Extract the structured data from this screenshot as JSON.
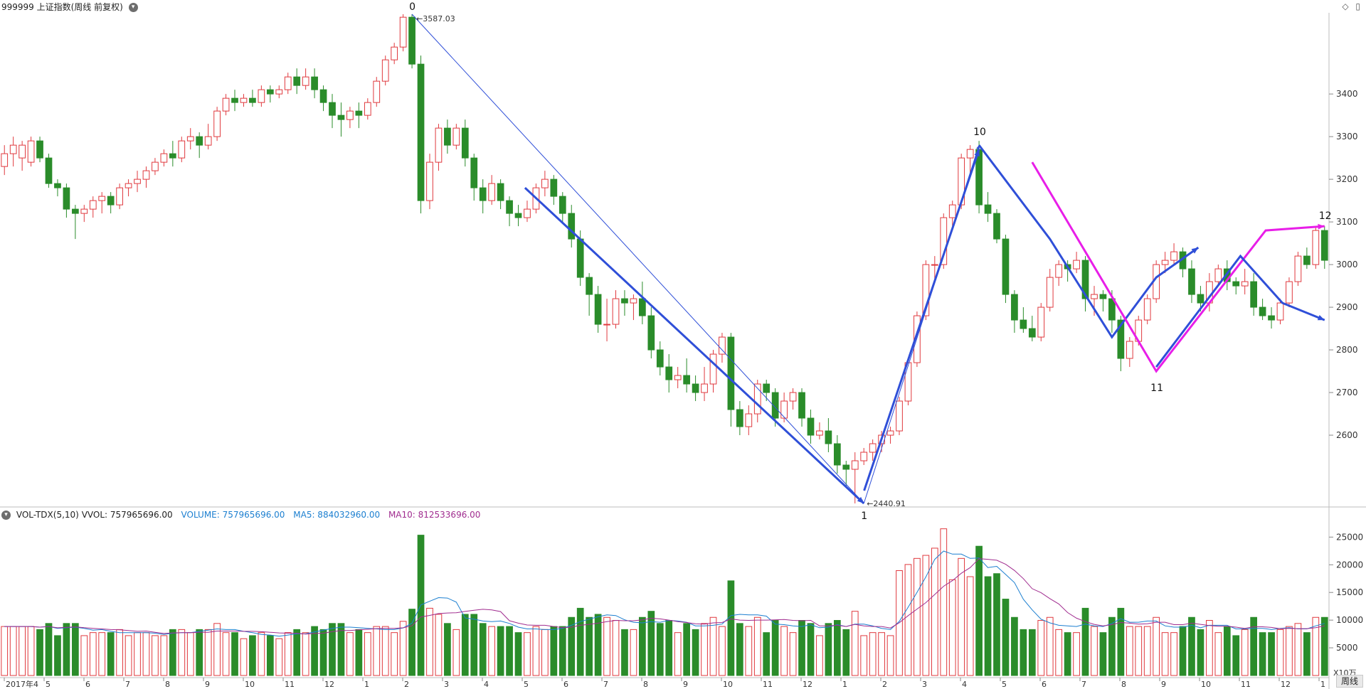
{
  "header": {
    "title": "999999 上证指数(周线 前复权)",
    "collapse_icon": "chevron-down-icon",
    "right_icons": [
      "diamond-icon",
      "panel-toggle-icon"
    ]
  },
  "colors": {
    "up": "#e0393e",
    "down": "#2a8c2a",
    "wave_blue": "#2f4fd8",
    "wave_magenta": "#e81ee8",
    "ma5": "#1c7fd0",
    "ma10": "#a02c8f",
    "grid": "#d8d8d8"
  },
  "chart_data": [
    {
      "type": "candlestick",
      "title": "999999 上证指数(周线 前复权)",
      "y_ticks": [
        2600,
        2700,
        2800,
        2900,
        3000,
        3100,
        3200,
        3300,
        3400
      ],
      "ylim": [
        2440,
        3587
      ],
      "x_month_labels": [
        "2017年4",
        "5",
        "6",
        "7",
        "8",
        "9",
        "10",
        "11",
        "12",
        "1",
        "2",
        "3",
        "4",
        "5",
        "6",
        "7",
        "8",
        "9",
        "10",
        "11",
        "12",
        "1",
        "2",
        "3",
        "4",
        "5",
        "6",
        "7",
        "8",
        "9",
        "10",
        "11",
        "12",
        "1"
      ],
      "peak_annotation": "3587.03",
      "trough_annotation": "2440.91",
      "wave_labels": [
        "0",
        "1",
        "10",
        "11",
        "12"
      ],
      "candles": [
        [
          3230,
          3260,
          3210,
          3280
        ],
        [
          3260,
          3280,
          3230,
          3300
        ],
        [
          3250,
          3280,
          3220,
          3290
        ],
        [
          3240,
          3290,
          3230,
          3300
        ],
        [
          3290,
          3250,
          3240,
          3300
        ],
        [
          3250,
          3190,
          3180,
          3260
        ],
        [
          3190,
          3180,
          3160,
          3200
        ],
        [
          3180,
          3130,
          3110,
          3190
        ],
        [
          3130,
          3120,
          3060,
          3140
        ],
        [
          3120,
          3130,
          3100,
          3140
        ],
        [
          3130,
          3150,
          3110,
          3160
        ],
        [
          3150,
          3160,
          3120,
          3170
        ],
        [
          3160,
          3140,
          3120,
          3170
        ],
        [
          3140,
          3180,
          3130,
          3190
        ],
        [
          3180,
          3190,
          3160,
          3200
        ],
        [
          3190,
          3200,
          3170,
          3220
        ],
        [
          3200,
          3220,
          3180,
          3230
        ],
        [
          3220,
          3240,
          3210,
          3250
        ],
        [
          3240,
          3260,
          3230,
          3270
        ],
        [
          3260,
          3250,
          3230,
          3290
        ],
        [
          3250,
          3290,
          3240,
          3300
        ],
        [
          3290,
          3300,
          3270,
          3320
        ],
        [
          3300,
          3280,
          3250,
          3310
        ],
        [
          3280,
          3300,
          3270,
          3330
        ],
        [
          3300,
          3360,
          3290,
          3370
        ],
        [
          3360,
          3390,
          3350,
          3400
        ],
        [
          3390,
          3380,
          3360,
          3410
        ],
        [
          3380,
          3390,
          3370,
          3400
        ],
        [
          3390,
          3380,
          3370,
          3410
        ],
        [
          3380,
          3410,
          3370,
          3420
        ],
        [
          3410,
          3400,
          3380,
          3420
        ],
        [
          3400,
          3410,
          3390,
          3420
        ],
        [
          3410,
          3440,
          3400,
          3450
        ],
        [
          3440,
          3420,
          3400,
          3460
        ],
        [
          3420,
          3440,
          3410,
          3460
        ],
        [
          3440,
          3410,
          3390,
          3460
        ],
        [
          3410,
          3380,
          3360,
          3420
        ],
        [
          3380,
          3350,
          3320,
          3400
        ],
        [
          3350,
          3340,
          3300,
          3380
        ],
        [
          3340,
          3360,
          3320,
          3370
        ],
        [
          3360,
          3350,
          3320,
          3380
        ],
        [
          3350,
          3380,
          3340,
          3390
        ],
        [
          3380,
          3430,
          3370,
          3440
        ],
        [
          3430,
          3480,
          3420,
          3490
        ],
        [
          3480,
          3510,
          3470,
          3520
        ],
        [
          3510,
          3580,
          3500,
          3587
        ],
        [
          3580,
          3470,
          3460,
          3587
        ],
        [
          3470,
          3150,
          3120,
          3490
        ],
        [
          3150,
          3240,
          3130,
          3260
        ],
        [
          3240,
          3320,
          3220,
          3330
        ],
        [
          3320,
          3280,
          3260,
          3340
        ],
        [
          3280,
          3320,
          3270,
          3330
        ],
        [
          3320,
          3250,
          3230,
          3340
        ],
        [
          3250,
          3180,
          3150,
          3260
        ],
        [
          3180,
          3150,
          3120,
          3200
        ],
        [
          3150,
          3190,
          3140,
          3210
        ],
        [
          3190,
          3150,
          3130,
          3200
        ],
        [
          3150,
          3120,
          3090,
          3160
        ],
        [
          3120,
          3110,
          3090,
          3140
        ],
        [
          3110,
          3130,
          3100,
          3150
        ],
        [
          3130,
          3180,
          3120,
          3190
        ],
        [
          3180,
          3200,
          3160,
          3220
        ],
        [
          3200,
          3160,
          3140,
          3210
        ],
        [
          3160,
          3120,
          3100,
          3170
        ],
        [
          3120,
          3060,
          3040,
          3140
        ],
        [
          3060,
          2970,
          2950,
          3080
        ],
        [
          2970,
          2930,
          2880,
          2980
        ],
        [
          2930,
          2860,
          2840,
          2950
        ],
        [
          2860,
          2860,
          2820,
          2920
        ],
        [
          2860,
          2920,
          2850,
          2940
        ],
        [
          2920,
          2910,
          2880,
          2940
        ],
        [
          2910,
          2920,
          2870,
          2930
        ],
        [
          2920,
          2880,
          2860,
          2960
        ],
        [
          2880,
          2800,
          2780,
          2900
        ],
        [
          2800,
          2760,
          2740,
          2820
        ],
        [
          2760,
          2730,
          2700,
          2790
        ],
        [
          2730,
          2740,
          2710,
          2760
        ],
        [
          2740,
          2720,
          2700,
          2780
        ],
        [
          2720,
          2700,
          2680,
          2740
        ],
        [
          2700,
          2720,
          2680,
          2760
        ],
        [
          2720,
          2790,
          2700,
          2800
        ],
        [
          2790,
          2830,
          2770,
          2840
        ],
        [
          2830,
          2660,
          2620,
          2840
        ],
        [
          2660,
          2620,
          2600,
          2680
        ],
        [
          2620,
          2650,
          2600,
          2670
        ],
        [
          2650,
          2720,
          2630,
          2730
        ],
        [
          2720,
          2700,
          2680,
          2730
        ],
        [
          2700,
          2640,
          2620,
          2710
        ],
        [
          2640,
          2680,
          2630,
          2700
        ],
        [
          2680,
          2700,
          2660,
          2710
        ],
        [
          2700,
          2640,
          2620,
          2710
        ],
        [
          2640,
          2600,
          2580,
          2660
        ],
        [
          2600,
          2610,
          2590,
          2630
        ],
        [
          2610,
          2580,
          2560,
          2640
        ],
        [
          2580,
          2530,
          2510,
          2600
        ],
        [
          2530,
          2520,
          2480,
          2540
        ],
        [
          2520,
          2540,
          2440,
          2560
        ],
        [
          2540,
          2560,
          2530,
          2570
        ],
        [
          2560,
          2580,
          2540,
          2590
        ],
        [
          2580,
          2600,
          2560,
          2610
        ],
        [
          2600,
          2610,
          2580,
          2620
        ],
        [
          2610,
          2680,
          2600,
          2690
        ],
        [
          2680,
          2770,
          2670,
          2780
        ],
        [
          2770,
          2880,
          2760,
          2890
        ],
        [
          2880,
          3000,
          2870,
          3010
        ],
        [
          3000,
          3000,
          2960,
          3020
        ],
        [
          3000,
          3110,
          2990,
          3120
        ],
        [
          3110,
          3140,
          3090,
          3150
        ],
        [
          3140,
          3250,
          3130,
          3260
        ],
        [
          3250,
          3270,
          3210,
          3280
        ],
        [
          3270,
          3140,
          3120,
          3290
        ],
        [
          3140,
          3120,
          3100,
          3170
        ],
        [
          3120,
          3060,
          3050,
          3130
        ],
        [
          3060,
          2930,
          2910,
          3070
        ],
        [
          2930,
          2870,
          2840,
          2940
        ],
        [
          2870,
          2850,
          2840,
          2900
        ],
        [
          2850,
          2830,
          2820,
          2880
        ],
        [
          2830,
          2900,
          2820,
          2910
        ],
        [
          2900,
          2970,
          2890,
          2990
        ],
        [
          2970,
          3000,
          2950,
          3010
        ],
        [
          3000,
          2990,
          2960,
          3010
        ],
        [
          2990,
          3010,
          2980,
          3030
        ],
        [
          3010,
          2920,
          2890,
          3020
        ],
        [
          2920,
          2930,
          2880,
          2950
        ],
        [
          2930,
          2920,
          2890,
          2940
        ],
        [
          2920,
          2870,
          2840,
          2940
        ],
        [
          2870,
          2780,
          2750,
          2880
        ],
        [
          2780,
          2820,
          2760,
          2830
        ],
        [
          2820,
          2870,
          2810,
          2880
        ],
        [
          2870,
          2920,
          2860,
          2930
        ],
        [
          2920,
          3000,
          2910,
          3010
        ],
        [
          3000,
          3010,
          2980,
          3030
        ],
        [
          3010,
          3030,
          3000,
          3050
        ],
        [
          3030,
          2990,
          2970,
          3040
        ],
        [
          2990,
          2930,
          2910,
          3010
        ],
        [
          2930,
          2910,
          2890,
          2950
        ],
        [
          2910,
          2960,
          2890,
          2980
        ],
        [
          2960,
          2990,
          2950,
          3000
        ],
        [
          2990,
          2960,
          2940,
          3010
        ],
        [
          2960,
          2950,
          2930,
          2970
        ],
        [
          2950,
          2960,
          2930,
          2990
        ],
        [
          2960,
          2900,
          2880,
          2980
        ],
        [
          2900,
          2880,
          2870,
          2920
        ],
        [
          2880,
          2870,
          2850,
          2900
        ],
        [
          2870,
          2910,
          2860,
          2920
        ],
        [
          2910,
          2960,
          2900,
          2970
        ],
        [
          2960,
          3020,
          2950,
          3030
        ],
        [
          3020,
          3000,
          2990,
          3040
        ],
        [
          3000,
          3080,
          2990,
          3090
        ],
        [
          3080,
          3010,
          2990,
          3090
        ]
      ],
      "waves": [
        {
          "color": "blue",
          "points": [
            [
              0,
              3587
            ],
            [
              1,
              2440
            ]
          ],
          "thick": false
        },
        {
          "color": "blue",
          "points": [
            [
              0.25,
              3180
            ],
            [
              1,
              2440
            ]
          ],
          "thick": true
        },
        {
          "color": "blue",
          "points": [
            [
              1,
              2440
            ],
            [
              10,
              3280
            ]
          ],
          "thick": false
        },
        {
          "color": "blue",
          "points": [
            [
              1.02,
              2470
            ],
            [
              10,
              3270
            ]
          ],
          "thick": true
        },
        {
          "color": "blue",
          "points": [
            [
              10,
              3280
            ],
            [
              10.4,
              3060
            ],
            [
              10.75,
              2830
            ],
            [
              11,
              2970
            ],
            [
              11.25,
              3040
            ]
          ],
          "thick": true
        },
        {
          "color": "magenta",
          "points": [
            [
              10.3,
              3240
            ],
            [
              11,
              2750
            ],
            [
              11.65,
              3080
            ],
            [
              12,
              3090
            ]
          ],
          "thick": true
        },
        {
          "color": "blue",
          "points": [
            [
              11,
              2760
            ],
            [
              11.5,
              3020
            ],
            [
              11.75,
              2910
            ],
            [
              12,
              2870
            ]
          ],
          "thick": true
        }
      ]
    },
    {
      "type": "bar",
      "title": "VOL-TDX(5,10)",
      "legend": [
        {
          "label": "VVOL: 757965696.00"
        },
        {
          "label": "VOLUME: 757965696.00"
        },
        {
          "label": "MA5: 884032960.00"
        },
        {
          "label": "MA10: 812533696.00"
        }
      ],
      "y_ticks": [
        5000,
        10000,
        15000,
        20000,
        25000
      ],
      "ylim": [
        0,
        28000
      ],
      "unit_label": "X10万",
      "period_label": "周线"
    }
  ]
}
